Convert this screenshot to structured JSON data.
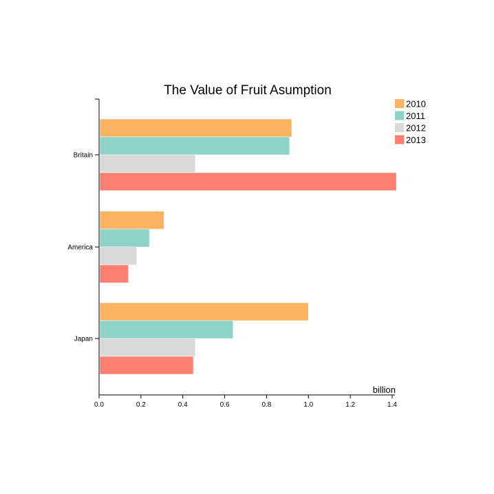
{
  "chart_data": {
    "type": "bar",
    "orientation": "horizontal",
    "title": "The Value of Fruit Asumption",
    "xlabel": "billion",
    "ylabel": "",
    "categories": [
      "Britain",
      "America",
      "Japan"
    ],
    "series": [
      {
        "name": "2010",
        "color": "#fdb462",
        "values": [
          0.92,
          0.31,
          1.0
        ]
      },
      {
        "name": "2011",
        "color": "#8dd3c7",
        "values": [
          0.91,
          0.24,
          0.64
        ]
      },
      {
        "name": "2012",
        "color": "#d9d9d9",
        "values": [
          0.46,
          0.18,
          0.46
        ]
      },
      {
        "name": "2013",
        "color": "#fb8072",
        "values": [
          1.42,
          0.14,
          0.45
        ]
      }
    ],
    "xlim": [
      0,
      1.4
    ],
    "xticks": [
      "0.0",
      "0.2",
      "0.4",
      "0.6",
      "0.8",
      "1.0",
      "1.2",
      "1.4"
    ],
    "grid": false,
    "legend_position": "top-right"
  }
}
